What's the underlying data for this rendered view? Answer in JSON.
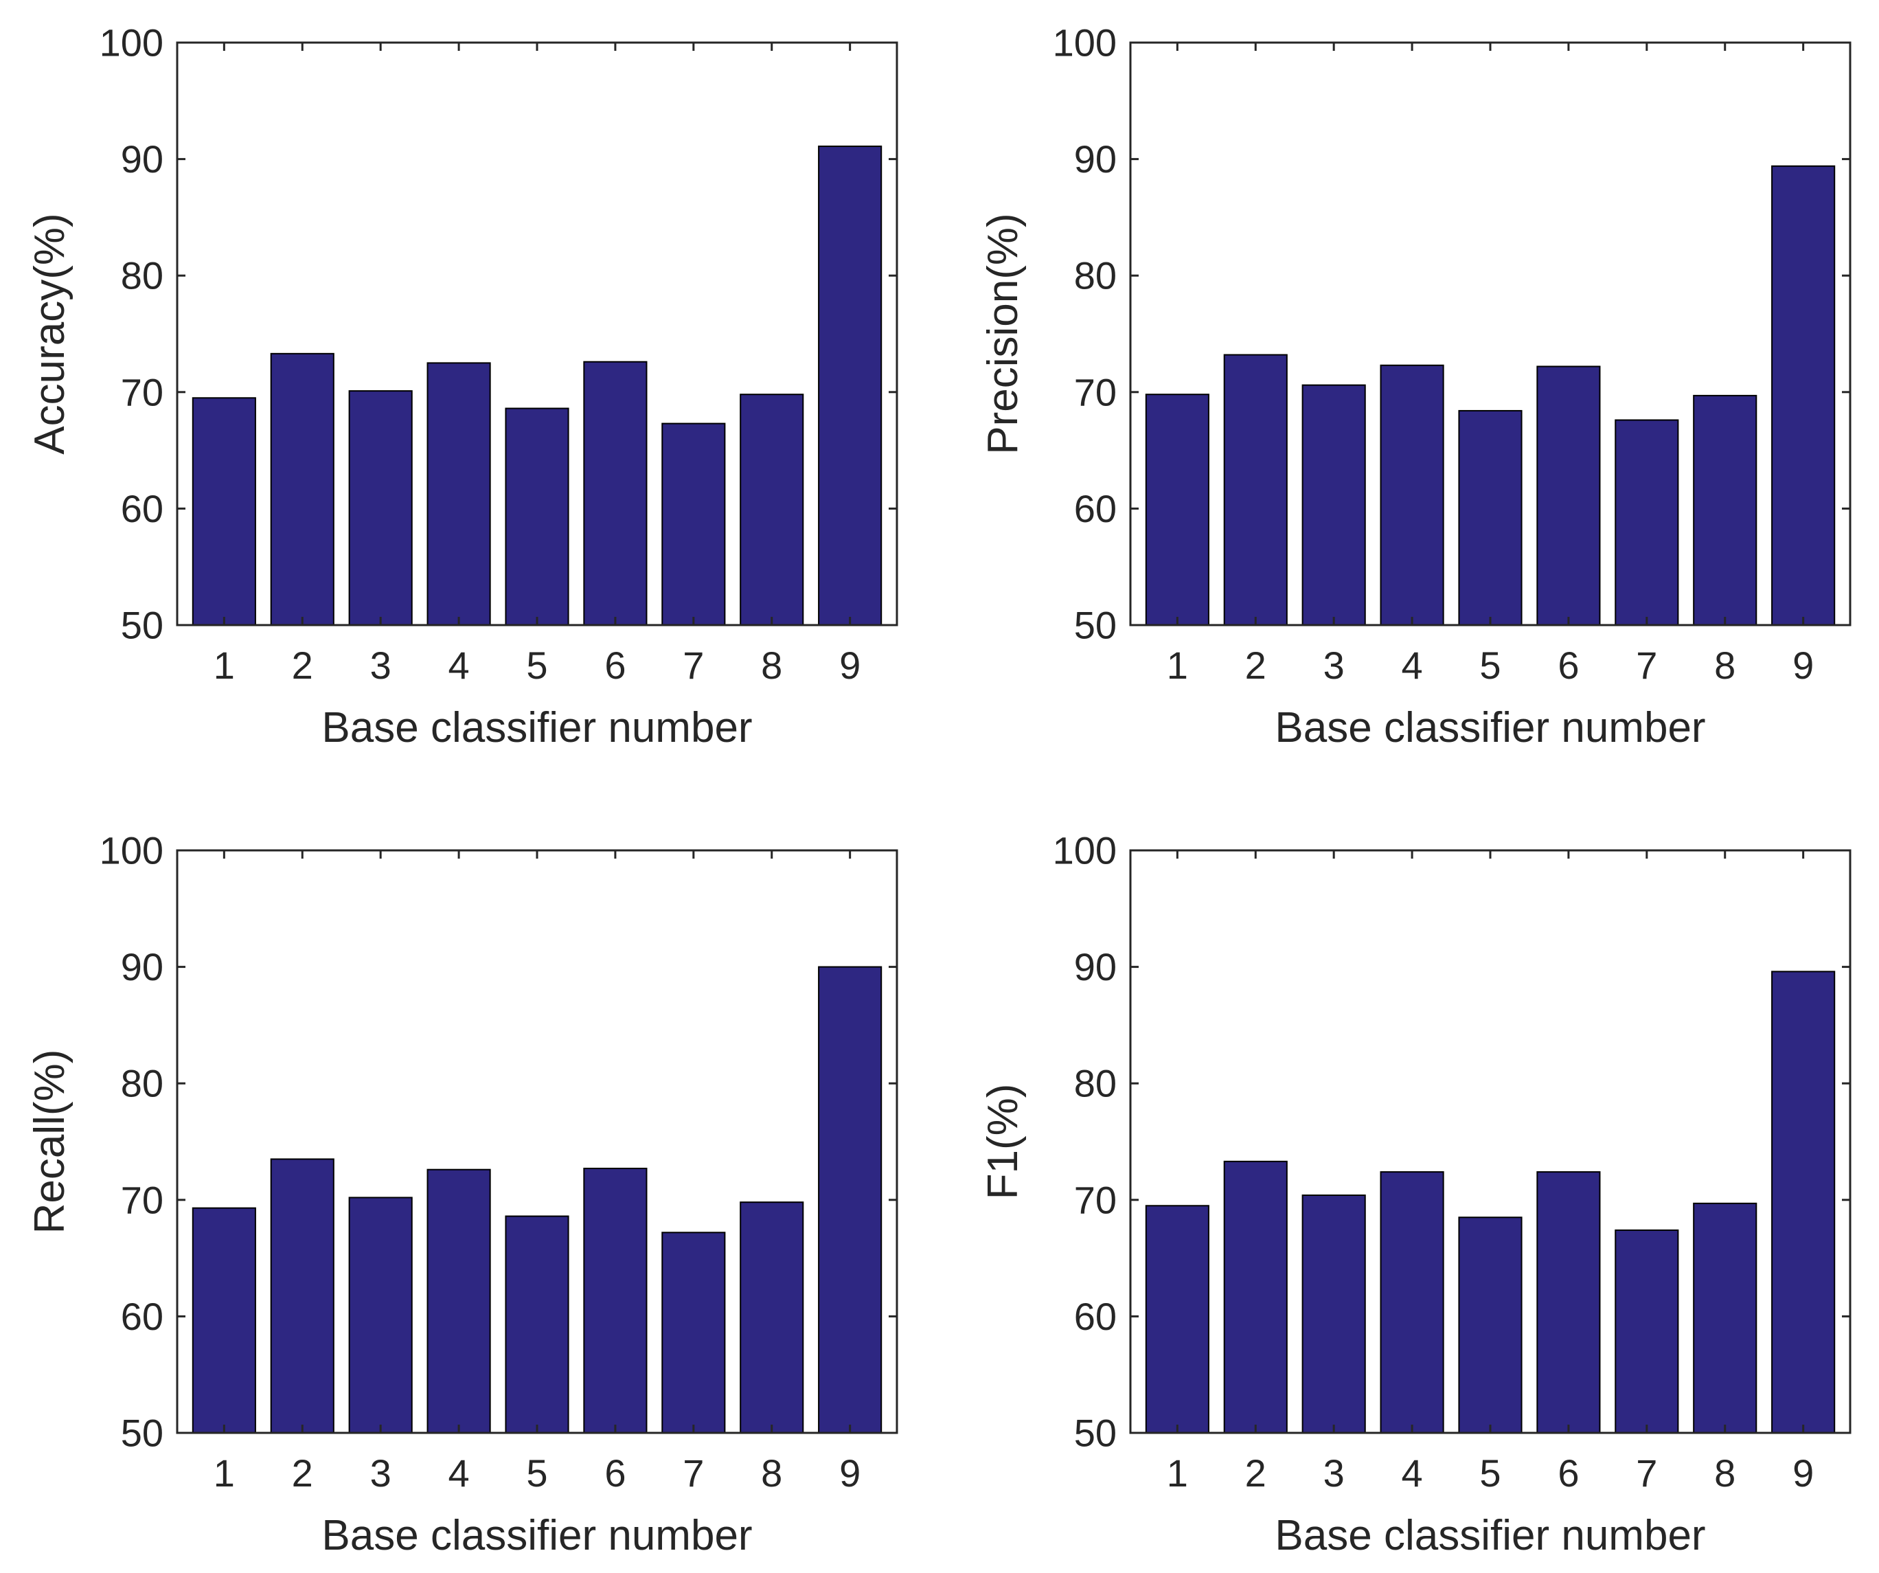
{
  "colors": {
    "bar": "#2e2782",
    "axis": "#262626",
    "text": "#262626",
    "background": "#ffffff"
  },
  "chart_data": [
    {
      "type": "bar",
      "title": "",
      "xlabel": "Base classifier number",
      "ylabel": "Accuracy(%)",
      "categories": [
        "1",
        "2",
        "3",
        "4",
        "5",
        "6",
        "7",
        "8",
        "9"
      ],
      "values": [
        69.5,
        73.3,
        70.1,
        72.5,
        68.6,
        72.6,
        67.3,
        69.8,
        91.1
      ],
      "ylim": [
        50,
        100
      ],
      "yticks": [
        50,
        60,
        70,
        80,
        90,
        100
      ],
      "grid": false,
      "legend": "none"
    },
    {
      "type": "bar",
      "title": "",
      "xlabel": "Base classifier number",
      "ylabel": "Precision(%)",
      "categories": [
        "1",
        "2",
        "3",
        "4",
        "5",
        "6",
        "7",
        "8",
        "9"
      ],
      "values": [
        69.8,
        73.2,
        70.6,
        72.3,
        68.4,
        72.2,
        67.6,
        69.7,
        89.4
      ],
      "ylim": [
        50,
        100
      ],
      "yticks": [
        50,
        60,
        70,
        80,
        90,
        100
      ],
      "grid": false,
      "legend": "none"
    },
    {
      "type": "bar",
      "title": "",
      "xlabel": "Base classifier number",
      "ylabel": "Recall(%)",
      "categories": [
        "1",
        "2",
        "3",
        "4",
        "5",
        "6",
        "7",
        "8",
        "9"
      ],
      "values": [
        69.3,
        73.5,
        70.2,
        72.6,
        68.6,
        72.7,
        67.2,
        69.8,
        90.0
      ],
      "ylim": [
        50,
        100
      ],
      "yticks": [
        50,
        60,
        70,
        80,
        90,
        100
      ],
      "grid": false,
      "legend": "none"
    },
    {
      "type": "bar",
      "title": "",
      "xlabel": "Base classifier number",
      "ylabel": "F1(%)",
      "categories": [
        "1",
        "2",
        "3",
        "4",
        "5",
        "6",
        "7",
        "8",
        "9"
      ],
      "values": [
        69.5,
        73.3,
        70.4,
        72.4,
        68.5,
        72.4,
        67.4,
        69.7,
        89.6
      ],
      "ylim": [
        50,
        100
      ],
      "yticks": [
        50,
        60,
        70,
        80,
        90,
        100
      ],
      "grid": false,
      "legend": "none"
    }
  ]
}
